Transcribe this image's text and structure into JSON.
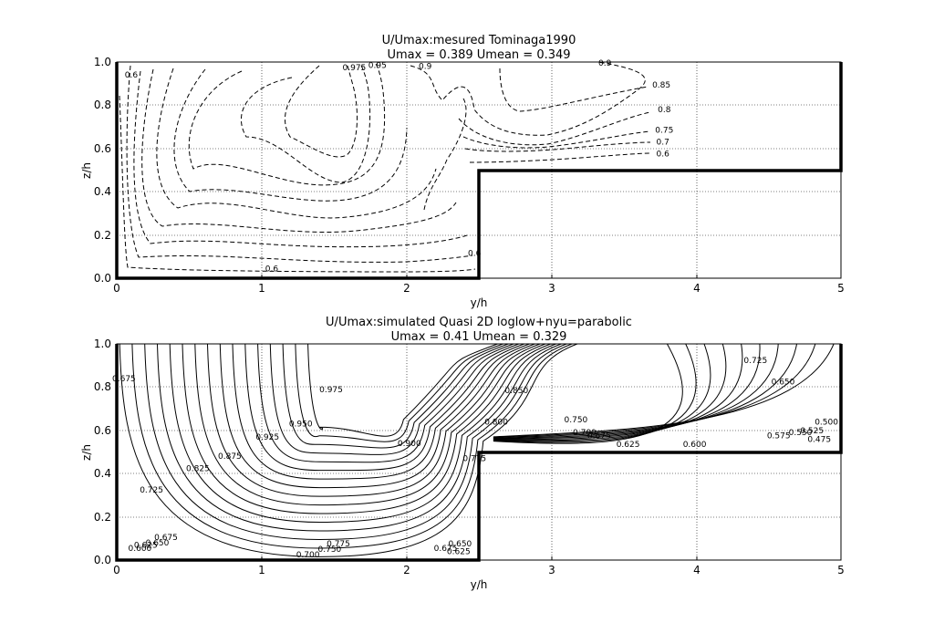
{
  "chart_data": [
    {
      "type": "contour",
      "title": "U/Umax:mesured Tominaga1990",
      "subtitle": "Umax = 0.389 Umean = 0.349",
      "xlabel": "y/h",
      "ylabel": "z/h",
      "xlim": [
        0,
        5
      ],
      "ylim": [
        0,
        1
      ],
      "xticks": [
        "0",
        "1",
        "2",
        "3",
        "4",
        "5"
      ],
      "yticks": [
        "0.0",
        "0.2",
        "0.4",
        "0.6",
        "0.8",
        "1.0"
      ],
      "grid": true,
      "line_style": "dashed",
      "boundary": [
        [
          0,
          1
        ],
        [
          0,
          0
        ],
        [
          2.5,
          0
        ],
        [
          2.5,
          0.5
        ],
        [
          5,
          0.5
        ],
        [
          5,
          1
        ]
      ],
      "contour_labels": [
        {
          "text": "0.6",
          "x": 0.1,
          "y": 0.94
        },
        {
          "text": "0.975",
          "x": 1.64,
          "y": 0.975
        },
        {
          "text": "0.95",
          "x": 1.8,
          "y": 0.985
        },
        {
          "text": "0.9",
          "x": 2.13,
          "y": 0.98
        },
        {
          "text": "0.9",
          "x": 3.37,
          "y": 0.995
        },
        {
          "text": "0.85",
          "x": 3.76,
          "y": 0.895
        },
        {
          "text": "0.8",
          "x": 3.78,
          "y": 0.78
        },
        {
          "text": "0.75",
          "x": 3.78,
          "y": 0.685
        },
        {
          "text": "0.7",
          "x": 3.77,
          "y": 0.63
        },
        {
          "text": "0.6",
          "x": 3.77,
          "y": 0.575
        },
        {
          "text": "0.6",
          "x": 2.47,
          "y": 0.115
        },
        {
          "text": "0.6",
          "x": 1.07,
          "y": 0.045
        }
      ]
    },
    {
      "type": "contour",
      "title": "U/Umax:simulated Quasi 2D loglow+nyu=parabolic",
      "subtitle": "Umax = 0.41 Umean = 0.329",
      "xlabel": "y/h",
      "ylabel": "z/h",
      "xlim": [
        0,
        5
      ],
      "ylim": [
        0,
        1
      ],
      "xticks": [
        "0",
        "1",
        "2",
        "3",
        "4",
        "5"
      ],
      "yticks": [
        "0.0",
        "0.2",
        "0.4",
        "0.6",
        "0.8",
        "1.0"
      ],
      "grid": true,
      "line_style": "solid",
      "boundary": [
        [
          0,
          1
        ],
        [
          0,
          0
        ],
        [
          2.5,
          0
        ],
        [
          2.5,
          0.5
        ],
        [
          5,
          0.5
        ],
        [
          5,
          1
        ]
      ],
      "contour_labels": [
        {
          "text": "0.675",
          "x": 0.05,
          "y": 0.84
        },
        {
          "text": "0.975",
          "x": 1.48,
          "y": 0.79
        },
        {
          "text": "0.950",
          "x": 1.27,
          "y": 0.63
        },
        {
          "text": "0.925",
          "x": 1.04,
          "y": 0.57
        },
        {
          "text": "0.875",
          "x": 0.78,
          "y": 0.48
        },
        {
          "text": "0.825",
          "x": 0.56,
          "y": 0.425
        },
        {
          "text": "0.725",
          "x": 0.24,
          "y": 0.325
        },
        {
          "text": "0.900",
          "x": 2.02,
          "y": 0.54
        },
        {
          "text": "0.850",
          "x": 2.76,
          "y": 0.785
        },
        {
          "text": "0.800",
          "x": 2.62,
          "y": 0.64
        },
        {
          "text": "0.775",
          "x": 2.47,
          "y": 0.47
        },
        {
          "text": "0.750",
          "x": 3.17,
          "y": 0.65
        },
        {
          "text": "0.700",
          "x": 3.23,
          "y": 0.59
        },
        {
          "text": "0.675",
          "x": 3.33,
          "y": 0.575
        },
        {
          "text": "0.625",
          "x": 3.53,
          "y": 0.535
        },
        {
          "text": "0.600",
          "x": 3.99,
          "y": 0.535
        },
        {
          "text": "0.575",
          "x": 4.57,
          "y": 0.575
        },
        {
          "text": "0.725",
          "x": 4.41,
          "y": 0.925
        },
        {
          "text": "0.650",
          "x": 4.6,
          "y": 0.825
        },
        {
          "text": "0.550",
          "x": 4.72,
          "y": 0.59
        },
        {
          "text": "0.525",
          "x": 4.8,
          "y": 0.6
        },
        {
          "text": "0.500",
          "x": 4.9,
          "y": 0.64
        },
        {
          "text": "0.475",
          "x": 4.85,
          "y": 0.56
        },
        {
          "text": "0.775",
          "x": 1.53,
          "y": 0.075
        },
        {
          "text": "0.750",
          "x": 1.47,
          "y": 0.05
        },
        {
          "text": "0.700",
          "x": 1.32,
          "y": 0.025
        },
        {
          "text": "0.675",
          "x": 0.34,
          "y": 0.105
        },
        {
          "text": "0.650",
          "x": 0.28,
          "y": 0.08
        },
        {
          "text": "0.625",
          "x": 0.2,
          "y": 0.07
        },
        {
          "text": "0.600",
          "x": 0.16,
          "y": 0.055
        },
        {
          "text": "0.675",
          "x": 2.27,
          "y": 0.055
        },
        {
          "text": "0.650",
          "x": 2.37,
          "y": 0.075
        },
        {
          "text": "0.625",
          "x": 2.36,
          "y": 0.04
        }
      ]
    }
  ]
}
